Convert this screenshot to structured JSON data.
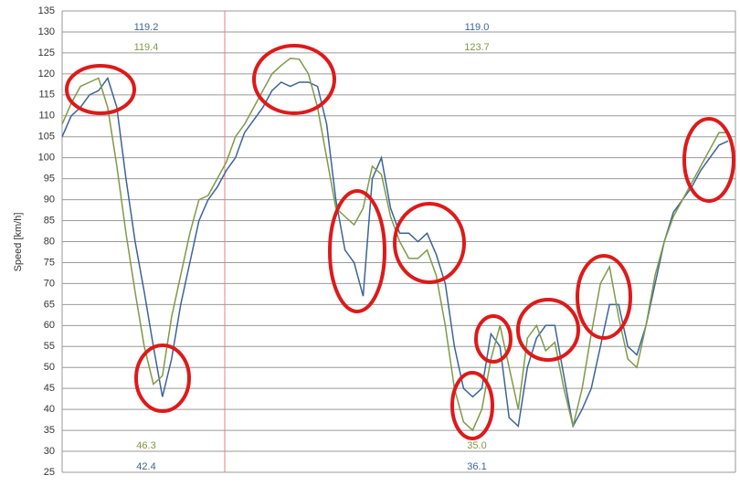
{
  "chart_data": {
    "type": "line",
    "y_label": "Speed [km/h]",
    "ylim": [
      25,
      135
    ],
    "yticks": [
      25,
      30,
      35,
      40,
      45,
      50,
      55,
      60,
      65,
      70,
      75,
      80,
      85,
      90,
      95,
      100,
      105,
      110,
      115,
      120,
      125,
      130,
      135
    ],
    "grid": true,
    "series": [
      {
        "color": "#3c6497",
        "values": [
          105,
          110,
          112,
          115,
          116,
          119,
          112,
          95,
          80,
          68,
          55,
          43,
          52,
          65,
          75,
          85,
          90,
          93,
          97,
          100,
          106,
          109,
          112,
          116,
          118,
          117,
          118,
          118,
          117,
          108,
          90,
          78,
          75,
          67,
          95,
          100,
          88,
          82,
          82,
          80,
          82,
          77,
          70,
          55,
          45,
          43,
          45,
          58,
          55,
          38,
          36,
          50,
          57,
          60,
          60,
          48,
          36,
          40,
          45,
          55,
          65,
          65,
          55,
          53,
          60,
          70,
          80,
          87,
          90,
          93,
          97,
          100,
          103,
          104
        ]
      },
      {
        "color": "#7f9a48",
        "values": [
          108,
          113,
          117,
          118,
          119,
          112,
          98,
          82,
          68,
          55,
          46,
          48,
          62,
          72,
          82,
          90,
          91,
          95,
          99,
          105,
          108,
          112,
          116,
          120,
          122,
          123.7,
          123.5,
          120,
          112,
          100,
          88,
          86,
          84,
          88,
          98,
          96,
          86,
          80,
          76,
          76,
          78,
          72,
          60,
          45,
          37,
          35,
          40,
          52,
          60,
          50,
          40,
          57,
          60,
          54,
          56,
          45,
          36,
          45,
          58,
          70,
          74,
          62,
          52,
          50,
          60,
          72,
          80,
          86,
          90,
          94,
          98,
          102,
          106,
          106
        ]
      }
    ],
    "annotations": [
      {
        "text": "119.2",
        "color": "#3c6497"
      },
      {
        "text": "119.4",
        "color": "#7f9a48"
      },
      {
        "text": "46.3",
        "color": "#7f9a48"
      },
      {
        "text": "42.4",
        "color": "#3c6497"
      },
      {
        "text": "119.0",
        "color": "#3c6497"
      },
      {
        "text": "123.7",
        "color": "#7f9a48"
      },
      {
        "text": "35.0",
        "color": "#7f9a48"
      },
      {
        "text": "36.1",
        "color": "#3c6497"
      }
    ]
  }
}
